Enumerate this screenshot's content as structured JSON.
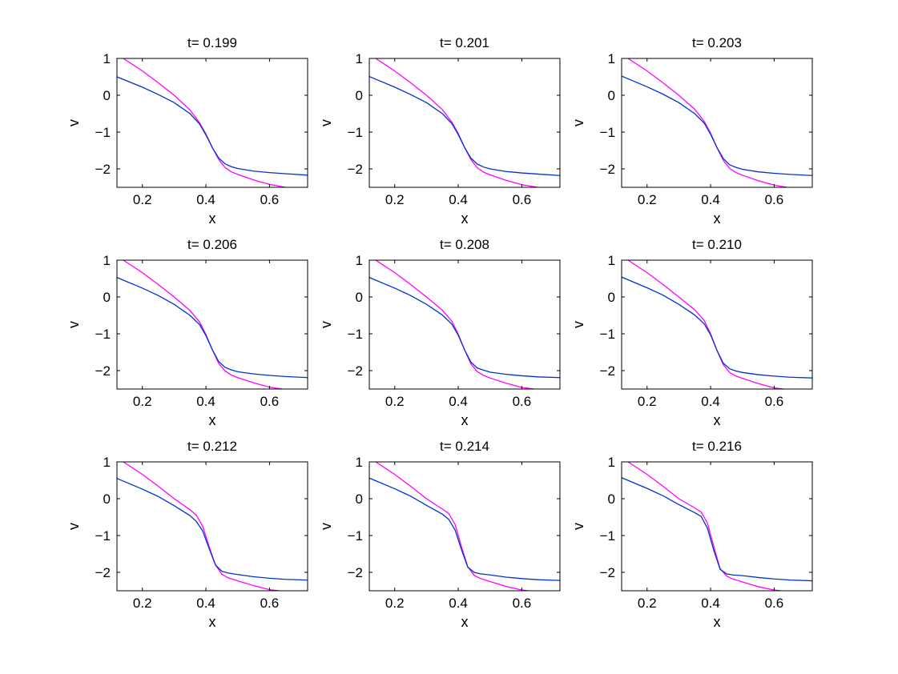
{
  "figure": {
    "panels": [
      {
        "title": "t= 0.199",
        "xlabel": "x",
        "ylabel": "v"
      },
      {
        "title": "t= 0.201",
        "xlabel": "x",
        "ylabel": "v"
      },
      {
        "title": "t= 0.203",
        "xlabel": "x",
        "ylabel": "v"
      },
      {
        "title": "t= 0.206",
        "xlabel": "x",
        "ylabel": "v"
      },
      {
        "title": "t= 0.208",
        "xlabel": "x",
        "ylabel": "v"
      },
      {
        "title": "t= 0.210",
        "xlabel": "x",
        "ylabel": "v"
      },
      {
        "title": "t= 0.212",
        "xlabel": "x",
        "ylabel": "v"
      },
      {
        "title": "t= 0.214",
        "xlabel": "x",
        "ylabel": "v"
      },
      {
        "title": "t= 0.216",
        "xlabel": "x",
        "ylabel": "v"
      }
    ]
  },
  "chart_data": [
    {
      "type": "line",
      "title": "t= 0.199",
      "xlabel": "x",
      "ylabel": "v",
      "xlim": [
        0.12,
        0.72
      ],
      "ylim": [
        -2.5,
        1
      ],
      "xticks": [
        0.2,
        0.4,
        0.6
      ],
      "yticks": [
        1,
        0,
        -1,
        -2
      ],
      "xtick_labels": [
        "0.2",
        "0.4",
        "0.6"
      ],
      "ytick_labels": [
        "1",
        "0",
        "−1",
        "−2"
      ],
      "grid": false,
      "legend": "none",
      "series": [
        {
          "color": "#ff00ff",
          "x": [
            0.14,
            0.2,
            0.25,
            0.3,
            0.35,
            0.38,
            0.4,
            0.42,
            0.44,
            0.46,
            0.48,
            0.5,
            0.55,
            0.6,
            0.65
          ],
          "y": [
            1.0,
            0.66,
            0.34,
            0.0,
            -0.4,
            -0.75,
            -1.05,
            -1.42,
            -1.74,
            -1.96,
            -2.08,
            -2.15,
            -2.3,
            -2.42,
            -2.5
          ]
        },
        {
          "color": "#0033cc",
          "x": [
            0.12,
            0.2,
            0.25,
            0.3,
            0.35,
            0.38,
            0.4,
            0.42,
            0.44,
            0.46,
            0.48,
            0.5,
            0.55,
            0.6,
            0.65,
            0.72
          ],
          "y": [
            0.5,
            0.22,
            0.02,
            -0.2,
            -0.5,
            -0.78,
            -1.08,
            -1.42,
            -1.7,
            -1.86,
            -1.94,
            -1.99,
            -2.06,
            -2.1,
            -2.13,
            -2.17
          ]
        }
      ]
    },
    {
      "type": "line",
      "title": "t= 0.201",
      "xlabel": "x",
      "ylabel": "v",
      "xlim": [
        0.12,
        0.72
      ],
      "ylim": [
        -2.5,
        1
      ],
      "xticks": [
        0.2,
        0.4,
        0.6
      ],
      "yticks": [
        1,
        0,
        -1,
        -2
      ],
      "xtick_labels": [
        "0.2",
        "0.4",
        "0.6"
      ],
      "ytick_labels": [
        "1",
        "0",
        "−1",
        "−2"
      ],
      "grid": false,
      "legend": "none",
      "series": [
        {
          "color": "#ff00ff",
          "x": [
            0.14,
            0.2,
            0.25,
            0.3,
            0.35,
            0.38,
            0.4,
            0.42,
            0.44,
            0.46,
            0.48,
            0.5,
            0.55,
            0.6,
            0.65
          ],
          "y": [
            1.0,
            0.66,
            0.34,
            0.0,
            -0.39,
            -0.73,
            -1.04,
            -1.42,
            -1.75,
            -1.97,
            -2.09,
            -2.16,
            -2.31,
            -2.43,
            -2.5
          ]
        },
        {
          "color": "#0033cc",
          "x": [
            0.12,
            0.2,
            0.25,
            0.3,
            0.35,
            0.38,
            0.4,
            0.42,
            0.44,
            0.46,
            0.48,
            0.5,
            0.55,
            0.6,
            0.65,
            0.72
          ],
          "y": [
            0.51,
            0.22,
            0.02,
            -0.2,
            -0.5,
            -0.77,
            -1.07,
            -1.42,
            -1.71,
            -1.87,
            -1.95,
            -2.0,
            -2.07,
            -2.11,
            -2.14,
            -2.18
          ]
        }
      ]
    },
    {
      "type": "line",
      "title": "t= 0.203",
      "xlabel": "x",
      "ylabel": "v",
      "xlim": [
        0.12,
        0.72
      ],
      "ylim": [
        -2.5,
        1
      ],
      "xticks": [
        0.2,
        0.4,
        0.6
      ],
      "yticks": [
        1,
        0,
        -1,
        -2
      ],
      "xtick_labels": [
        "0.2",
        "0.4",
        "0.6"
      ],
      "ytick_labels": [
        "1",
        "0",
        "−1",
        "−2"
      ],
      "grid": false,
      "legend": "none",
      "series": [
        {
          "color": "#ff00ff",
          "x": [
            0.14,
            0.2,
            0.25,
            0.3,
            0.35,
            0.38,
            0.4,
            0.42,
            0.44,
            0.46,
            0.48,
            0.5,
            0.55,
            0.6,
            0.64
          ],
          "y": [
            1.0,
            0.66,
            0.34,
            0.0,
            -0.38,
            -0.71,
            -1.03,
            -1.42,
            -1.77,
            -1.99,
            -2.1,
            -2.17,
            -2.32,
            -2.44,
            -2.5
          ]
        },
        {
          "color": "#0033cc",
          "x": [
            0.12,
            0.2,
            0.25,
            0.3,
            0.35,
            0.38,
            0.4,
            0.42,
            0.44,
            0.46,
            0.48,
            0.5,
            0.55,
            0.6,
            0.65,
            0.72
          ],
          "y": [
            0.52,
            0.23,
            0.03,
            -0.2,
            -0.5,
            -0.76,
            -1.06,
            -1.42,
            -1.72,
            -1.89,
            -1.96,
            -2.01,
            -2.08,
            -2.12,
            -2.15,
            -2.18
          ]
        }
      ]
    },
    {
      "type": "line",
      "title": "t= 0.206",
      "xlabel": "x",
      "ylabel": "v",
      "xlim": [
        0.12,
        0.72
      ],
      "ylim": [
        -2.5,
        1
      ],
      "xticks": [
        0.2,
        0.4,
        0.6
      ],
      "yticks": [
        1,
        0,
        -1,
        -2
      ],
      "xtick_labels": [
        "0.2",
        "0.4",
        "0.6"
      ],
      "ytick_labels": [
        "1",
        "0",
        "−1",
        "−2"
      ],
      "grid": false,
      "legend": "none",
      "series": [
        {
          "color": "#ff00ff",
          "x": [
            0.14,
            0.2,
            0.25,
            0.3,
            0.35,
            0.38,
            0.4,
            0.42,
            0.44,
            0.46,
            0.48,
            0.5,
            0.55,
            0.6,
            0.64
          ],
          "y": [
            1.0,
            0.66,
            0.34,
            0.0,
            -0.37,
            -0.68,
            -1.02,
            -1.43,
            -1.8,
            -2.01,
            -2.12,
            -2.19,
            -2.33,
            -2.45,
            -2.5
          ]
        },
        {
          "color": "#0033cc",
          "x": [
            0.12,
            0.2,
            0.25,
            0.3,
            0.35,
            0.38,
            0.4,
            0.42,
            0.44,
            0.46,
            0.48,
            0.5,
            0.55,
            0.6,
            0.65,
            0.72
          ],
          "y": [
            0.53,
            0.24,
            0.04,
            -0.2,
            -0.5,
            -0.75,
            -1.05,
            -1.43,
            -1.75,
            -1.91,
            -1.98,
            -2.03,
            -2.09,
            -2.13,
            -2.16,
            -2.19
          ]
        }
      ]
    },
    {
      "type": "line",
      "title": "t= 0.208",
      "xlabel": "x",
      "ylabel": "v",
      "xlim": [
        0.12,
        0.72
      ],
      "ylim": [
        -2.5,
        1
      ],
      "xticks": [
        0.2,
        0.4,
        0.6
      ],
      "yticks": [
        1,
        0,
        -1,
        -2
      ],
      "xtick_labels": [
        "0.2",
        "0.4",
        "0.6"
      ],
      "ytick_labels": [
        "1",
        "0",
        "−1",
        "−2"
      ],
      "grid": false,
      "legend": "none",
      "series": [
        {
          "color": "#ff00ff",
          "x": [
            0.14,
            0.2,
            0.25,
            0.3,
            0.35,
            0.38,
            0.4,
            0.42,
            0.44,
            0.46,
            0.48,
            0.5,
            0.55,
            0.6,
            0.64
          ],
          "y": [
            1.0,
            0.66,
            0.34,
            0.0,
            -0.36,
            -0.66,
            -1.01,
            -1.44,
            -1.82,
            -2.03,
            -2.13,
            -2.2,
            -2.34,
            -2.46,
            -2.5
          ]
        },
        {
          "color": "#0033cc",
          "x": [
            0.12,
            0.2,
            0.25,
            0.3,
            0.35,
            0.38,
            0.4,
            0.42,
            0.44,
            0.46,
            0.48,
            0.5,
            0.55,
            0.6,
            0.65,
            0.72
          ],
          "y": [
            0.53,
            0.24,
            0.04,
            -0.2,
            -0.49,
            -0.74,
            -1.04,
            -1.44,
            -1.77,
            -1.93,
            -1.99,
            -2.04,
            -2.1,
            -2.14,
            -2.17,
            -2.19
          ]
        }
      ]
    },
    {
      "type": "line",
      "title": "t= 0.210",
      "xlabel": "x",
      "ylabel": "v",
      "xlim": [
        0.12,
        0.72
      ],
      "ylim": [
        -2.5,
        1
      ],
      "xticks": [
        0.2,
        0.4,
        0.6
      ],
      "yticks": [
        1,
        0,
        -1,
        -2
      ],
      "xtick_labels": [
        "0.2",
        "0.4",
        "0.6"
      ],
      "ytick_labels": [
        "1",
        "0",
        "−1",
        "−2"
      ],
      "grid": false,
      "legend": "none",
      "series": [
        {
          "color": "#ff00ff",
          "x": [
            0.14,
            0.2,
            0.25,
            0.3,
            0.35,
            0.38,
            0.4,
            0.42,
            0.44,
            0.46,
            0.48,
            0.5,
            0.55,
            0.6,
            0.63
          ],
          "y": [
            1.0,
            0.66,
            0.34,
            0.0,
            -0.35,
            -0.64,
            -1.0,
            -1.45,
            -1.84,
            -2.05,
            -2.15,
            -2.21,
            -2.35,
            -2.47,
            -2.5
          ]
        },
        {
          "color": "#0033cc",
          "x": [
            0.12,
            0.2,
            0.25,
            0.3,
            0.35,
            0.38,
            0.4,
            0.42,
            0.44,
            0.46,
            0.48,
            0.5,
            0.55,
            0.6,
            0.65,
            0.72
          ],
          "y": [
            0.54,
            0.25,
            0.05,
            -0.2,
            -0.49,
            -0.73,
            -1.03,
            -1.45,
            -1.8,
            -1.95,
            -2.01,
            -2.05,
            -2.11,
            -2.15,
            -2.18,
            -2.2
          ]
        }
      ]
    },
    {
      "type": "line",
      "title": "t= 0.212",
      "xlabel": "x",
      "ylabel": "v",
      "xlim": [
        0.12,
        0.72
      ],
      "ylim": [
        -2.5,
        1
      ],
      "xticks": [
        0.2,
        0.4,
        0.6
      ],
      "yticks": [
        1,
        0,
        -1,
        -2
      ],
      "xtick_labels": [
        "0.2",
        "0.4",
        "0.6"
      ],
      "ytick_labels": [
        "1",
        "0",
        "−1",
        "−2"
      ],
      "grid": false,
      "legend": "none",
      "series": [
        {
          "color": "#ff00ff",
          "x": [
            0.14,
            0.2,
            0.25,
            0.3,
            0.35,
            0.37,
            0.39,
            0.41,
            0.43,
            0.45,
            0.47,
            0.5,
            0.55,
            0.6,
            0.63
          ],
          "y": [
            1.0,
            0.66,
            0.34,
            0.0,
            -0.3,
            -0.45,
            -0.75,
            -1.3,
            -1.8,
            -2.05,
            -2.15,
            -2.23,
            -2.36,
            -2.47,
            -2.5
          ]
        },
        {
          "color": "#0033cc",
          "x": [
            0.12,
            0.2,
            0.25,
            0.3,
            0.35,
            0.37,
            0.39,
            0.41,
            0.43,
            0.45,
            0.47,
            0.5,
            0.55,
            0.6,
            0.65,
            0.72
          ],
          "y": [
            0.55,
            0.26,
            0.06,
            -0.19,
            -0.46,
            -0.62,
            -0.88,
            -1.35,
            -1.8,
            -1.97,
            -2.02,
            -2.06,
            -2.12,
            -2.16,
            -2.19,
            -2.21
          ]
        }
      ]
    },
    {
      "type": "line",
      "title": "t= 0.214",
      "xlabel": "x",
      "ylabel": "v",
      "xlim": [
        0.12,
        0.72
      ],
      "ylim": [
        -2.5,
        1
      ],
      "xticks": [
        0.2,
        0.4,
        0.6
      ],
      "yticks": [
        1,
        0,
        -1,
        -2
      ],
      "xtick_labels": [
        "0.2",
        "0.4",
        "0.6"
      ],
      "ytick_labels": [
        "1",
        "0",
        "−1",
        "−2"
      ],
      "grid": false,
      "legend": "none",
      "series": [
        {
          "color": "#ff00ff",
          "x": [
            0.14,
            0.2,
            0.25,
            0.3,
            0.35,
            0.37,
            0.39,
            0.41,
            0.43,
            0.45,
            0.47,
            0.5,
            0.55,
            0.6,
            0.62
          ],
          "y": [
            1.0,
            0.66,
            0.34,
            0.0,
            -0.28,
            -0.4,
            -0.7,
            -1.3,
            -1.85,
            -2.08,
            -2.17,
            -2.25,
            -2.38,
            -2.48,
            -2.5
          ]
        },
        {
          "color": "#0033cc",
          "x": [
            0.12,
            0.2,
            0.25,
            0.3,
            0.35,
            0.37,
            0.39,
            0.41,
            0.43,
            0.45,
            0.47,
            0.5,
            0.55,
            0.6,
            0.65,
            0.72
          ],
          "y": [
            0.56,
            0.27,
            0.07,
            -0.18,
            -0.42,
            -0.56,
            -0.85,
            -1.38,
            -1.86,
            -2.0,
            -2.04,
            -2.07,
            -2.13,
            -2.17,
            -2.2,
            -2.22
          ]
        }
      ]
    },
    {
      "type": "line",
      "title": "t= 0.216",
      "xlabel": "x",
      "ylabel": "v",
      "xlim": [
        0.12,
        0.72
      ],
      "ylim": [
        -2.5,
        1
      ],
      "xticks": [
        0.2,
        0.4,
        0.6
      ],
      "yticks": [
        1,
        0,
        -1,
        -2
      ],
      "xtick_labels": [
        "0.2",
        "0.4",
        "0.6"
      ],
      "ytick_labels": [
        "1",
        "0",
        "−1",
        "−2"
      ],
      "grid": false,
      "legend": "none",
      "series": [
        {
          "color": "#ff00ff",
          "x": [
            0.14,
            0.2,
            0.25,
            0.3,
            0.35,
            0.37,
            0.39,
            0.41,
            0.43,
            0.45,
            0.47,
            0.5,
            0.55,
            0.6,
            0.62
          ],
          "y": [
            1.0,
            0.66,
            0.34,
            0.0,
            -0.25,
            -0.36,
            -0.66,
            -1.3,
            -1.9,
            -2.1,
            -2.18,
            -2.26,
            -2.39,
            -2.48,
            -2.5
          ]
        },
        {
          "color": "#0033cc",
          "x": [
            0.12,
            0.2,
            0.25,
            0.3,
            0.35,
            0.37,
            0.39,
            0.41,
            0.43,
            0.45,
            0.47,
            0.5,
            0.55,
            0.6,
            0.65,
            0.72
          ],
          "y": [
            0.57,
            0.28,
            0.08,
            -0.16,
            -0.38,
            -0.48,
            -0.8,
            -1.4,
            -1.92,
            -2.04,
            -2.07,
            -2.09,
            -2.14,
            -2.18,
            -2.21,
            -2.23
          ]
        }
      ]
    }
  ]
}
